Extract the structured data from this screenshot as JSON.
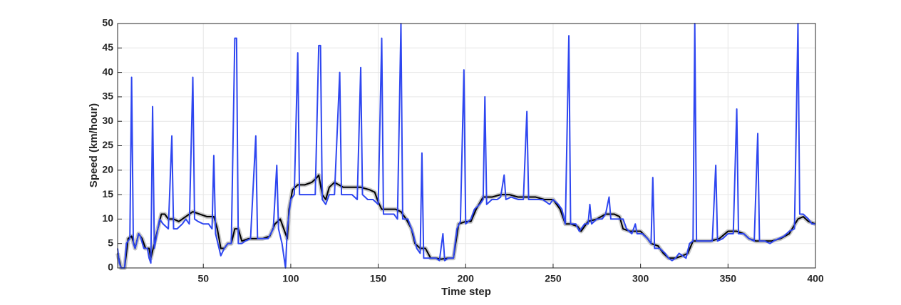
{
  "chart_data": {
    "type": "line",
    "xlabel": "Time step",
    "ylabel": "Speed (km/hour)",
    "xlim": [
      1,
      400
    ],
    "ylim": [
      0,
      50
    ],
    "xticks": [
      50,
      100,
      150,
      200,
      250,
      300,
      350,
      400
    ],
    "yticks": [
      0,
      5,
      10,
      15,
      20,
      25,
      30,
      35,
      40,
      45,
      50
    ],
    "grid": true,
    "series": [
      {
        "color": "#2e46f0",
        "x": [
          1,
          2,
          3,
          5,
          6,
          8,
          9,
          10,
          11,
          13,
          14,
          16,
          18,
          19,
          20,
          21,
          22,
          23,
          25,
          27,
          30,
          32,
          33,
          35,
          38,
          40,
          42,
          44,
          45,
          47,
          50,
          53,
          55,
          56,
          57,
          59,
          60,
          62,
          64,
          66,
          68,
          69,
          70,
          72,
          74,
          77,
          80,
          81,
          84,
          87,
          90,
          92,
          93,
          95,
          97,
          98,
          100,
          102,
          104,
          105,
          108,
          111,
          114,
          116,
          117,
          118,
          120,
          122,
          125,
          128,
          129,
          132,
          135,
          138,
          140,
          141,
          144,
          147,
          150,
          152,
          153,
          156,
          159,
          161,
          163,
          164,
          167,
          170,
          172,
          174,
          175,
          176,
          178,
          181,
          183,
          185,
          187,
          188,
          190,
          193,
          195,
          197,
          199,
          200,
          203,
          205,
          208,
          210,
          211,
          212,
          215,
          218,
          220,
          222,
          223,
          226,
          230,
          233,
          235,
          236,
          240,
          244,
          248,
          250,
          253,
          255,
          257,
          259,
          260,
          263,
          265,
          268,
          270,
          271,
          272,
          275,
          278,
          280,
          282,
          283,
          286,
          290,
          292,
          295,
          297,
          298,
          301,
          304,
          306,
          307,
          308,
          311,
          314,
          316,
          318,
          320,
          322,
          324,
          326,
          328,
          330,
          331,
          332,
          335,
          338,
          341,
          343,
          344,
          347,
          350,
          353,
          355,
          356,
          359,
          362,
          365,
          367,
          368,
          371,
          374,
          376,
          379,
          382,
          385,
          388,
          390,
          391,
          393,
          396,
          398,
          400
        ],
        "values": [
          4,
          1,
          0,
          0,
          5,
          6,
          39,
          5,
          4,
          7,
          6.5,
          4,
          4,
          2,
          1,
          33,
          4,
          6,
          10,
          9,
          8,
          27,
          8,
          8,
          9,
          10,
          9,
          39,
          10,
          9.5,
          9,
          9,
          8,
          23,
          7,
          4,
          2.5,
          4,
          5,
          5,
          47,
          47,
          5,
          5,
          5.5,
          6,
          27,
          6,
          6,
          6,
          8,
          21,
          8,
          5,
          0,
          8,
          14,
          15,
          44,
          15,
          15,
          15,
          15,
          45.5,
          45.5,
          14,
          13,
          15,
          15,
          40,
          15,
          15,
          15,
          14,
          41,
          15,
          14,
          14,
          13,
          47,
          11,
          11,
          11,
          10,
          50,
          10,
          10,
          7,
          4,
          3,
          23.5,
          2,
          2,
          2,
          2,
          1.5,
          7,
          1.5,
          2,
          2,
          8,
          9.5,
          40.5,
          9,
          10,
          12,
          13,
          14,
          35,
          13,
          14,
          14,
          14.5,
          19,
          14,
          14.5,
          14,
          14,
          32,
          14,
          14,
          14,
          13,
          14,
          13,
          12,
          9,
          47.5,
          9,
          9,
          7.5,
          9,
          9,
          13,
          9,
          10,
          10,
          11,
          14.5,
          10,
          10,
          10,
          8,
          7,
          9,
          7,
          7,
          6,
          5,
          18.5,
          4,
          4,
          3,
          2,
          1.5,
          2,
          3,
          2.5,
          2,
          5,
          5.5,
          50,
          5.5,
          5.5,
          5.5,
          5.5,
          21,
          5.5,
          6,
          7,
          7,
          32.5,
          7,
          7,
          6,
          5.5,
          27.5,
          5.5,
          5.5,
          5,
          5.5,
          6,
          6.5,
          7.5,
          8,
          50,
          11,
          11,
          10,
          9,
          9
        ]
      },
      {
        "color": "#000000",
        "x": [
          1,
          3,
          5,
          7,
          9,
          11,
          13,
          15,
          17,
          19,
          20,
          22,
          24,
          26,
          28,
          30,
          33,
          36,
          40,
          44,
          48,
          52,
          56,
          58,
          60,
          62,
          64,
          66,
          68,
          70,
          72,
          76,
          80,
          84,
          88,
          91,
          94,
          96,
          98,
          99,
          101,
          104,
          108,
          112,
          115,
          116,
          118,
          120,
          122,
          125,
          130,
          135,
          140,
          145,
          148,
          150,
          152,
          156,
          160,
          163,
          166,
          169,
          171,
          174,
          177,
          180,
          183,
          186,
          190,
          193,
          196,
          200,
          203,
          206,
          210,
          215,
          220,
          225,
          230,
          235,
          240,
          245,
          250,
          254,
          257,
          260,
          264,
          266,
          270,
          275,
          280,
          285,
          288,
          290,
          294,
          300,
          304,
          306,
          310,
          313,
          316,
          320,
          324,
          327,
          330,
          335,
          340,
          345,
          350,
          355,
          359,
          362,
          366,
          370,
          375,
          380,
          385,
          390,
          393,
          396,
          400
        ],
        "values": [
          3,
          0,
          0,
          6,
          6.5,
          4,
          7,
          6,
          4,
          4,
          2,
          5,
          8,
          11,
          11,
          10,
          10,
          9.5,
          10.5,
          11.5,
          11,
          10.5,
          10.5,
          8,
          4,
          4,
          5,
          5,
          8,
          8,
          5.5,
          6,
          6,
          6,
          6.5,
          9,
          10,
          8,
          6,
          12,
          16,
          17,
          17,
          17.5,
          18.5,
          19,
          15,
          14,
          16.5,
          17.5,
          16.5,
          16.5,
          16.5,
          16,
          15.5,
          13.5,
          12,
          12,
          12,
          11.5,
          10,
          8,
          5,
          4,
          4,
          2,
          2,
          1.8,
          2,
          2,
          9,
          9.5,
          9.5,
          12,
          14.5,
          14.5,
          15,
          15,
          14.5,
          14.5,
          14.5,
          14,
          14,
          12,
          9,
          9,
          8.5,
          7.5,
          9.5,
          10,
          11,
          11,
          10.5,
          8,
          7.5,
          7.5,
          6,
          5,
          4.5,
          3,
          2,
          2,
          2.5,
          3,
          5.5,
          5.5,
          5.5,
          6,
          7.5,
          7.5,
          7,
          6,
          5.5,
          5.5,
          5.5,
          6,
          7,
          10,
          10.5,
          9.5,
          9
        ]
      }
    ]
  }
}
